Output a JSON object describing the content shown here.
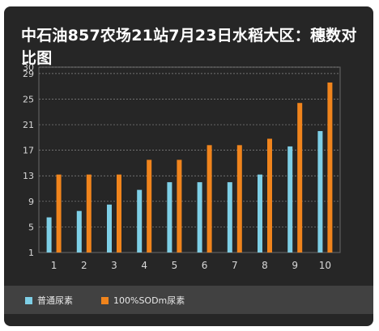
{
  "title": "中石油857农场21站7月23日水稻大区：穗数对比图",
  "legend": [
    {
      "name": "普通尿素",
      "color": "#7ecfe6"
    },
    {
      "name": "100%SODm尿素",
      "color": "#f0841c"
    }
  ],
  "chart_data": {
    "type": "bar",
    "title": "中石油857农场21站7月23日水稻大区：穗数对比图",
    "categories": [
      "1",
      "2",
      "3",
      "4",
      "5",
      "6",
      "7",
      "8",
      "9",
      "10"
    ],
    "series": [
      {
        "name": "普通尿素",
        "color": "#7ecfe6",
        "values": [
          6.5,
          7.5,
          8.5,
          10.8,
          12,
          12,
          12,
          13.2,
          17.6,
          20
        ]
      },
      {
        "name": "100%SODm尿素",
        "color": "#f0841c",
        "values": [
          13.2,
          13.2,
          13.2,
          15.5,
          15.5,
          17.8,
          17.8,
          18.8,
          24.4,
          27.6
        ]
      }
    ],
    "yticks": [
      1,
      5,
      9,
      13,
      17,
      21,
      25,
      29,
      30
    ],
    "ylim": [
      1,
      30
    ],
    "grid": true,
    "legend_position": "bottom-left"
  }
}
